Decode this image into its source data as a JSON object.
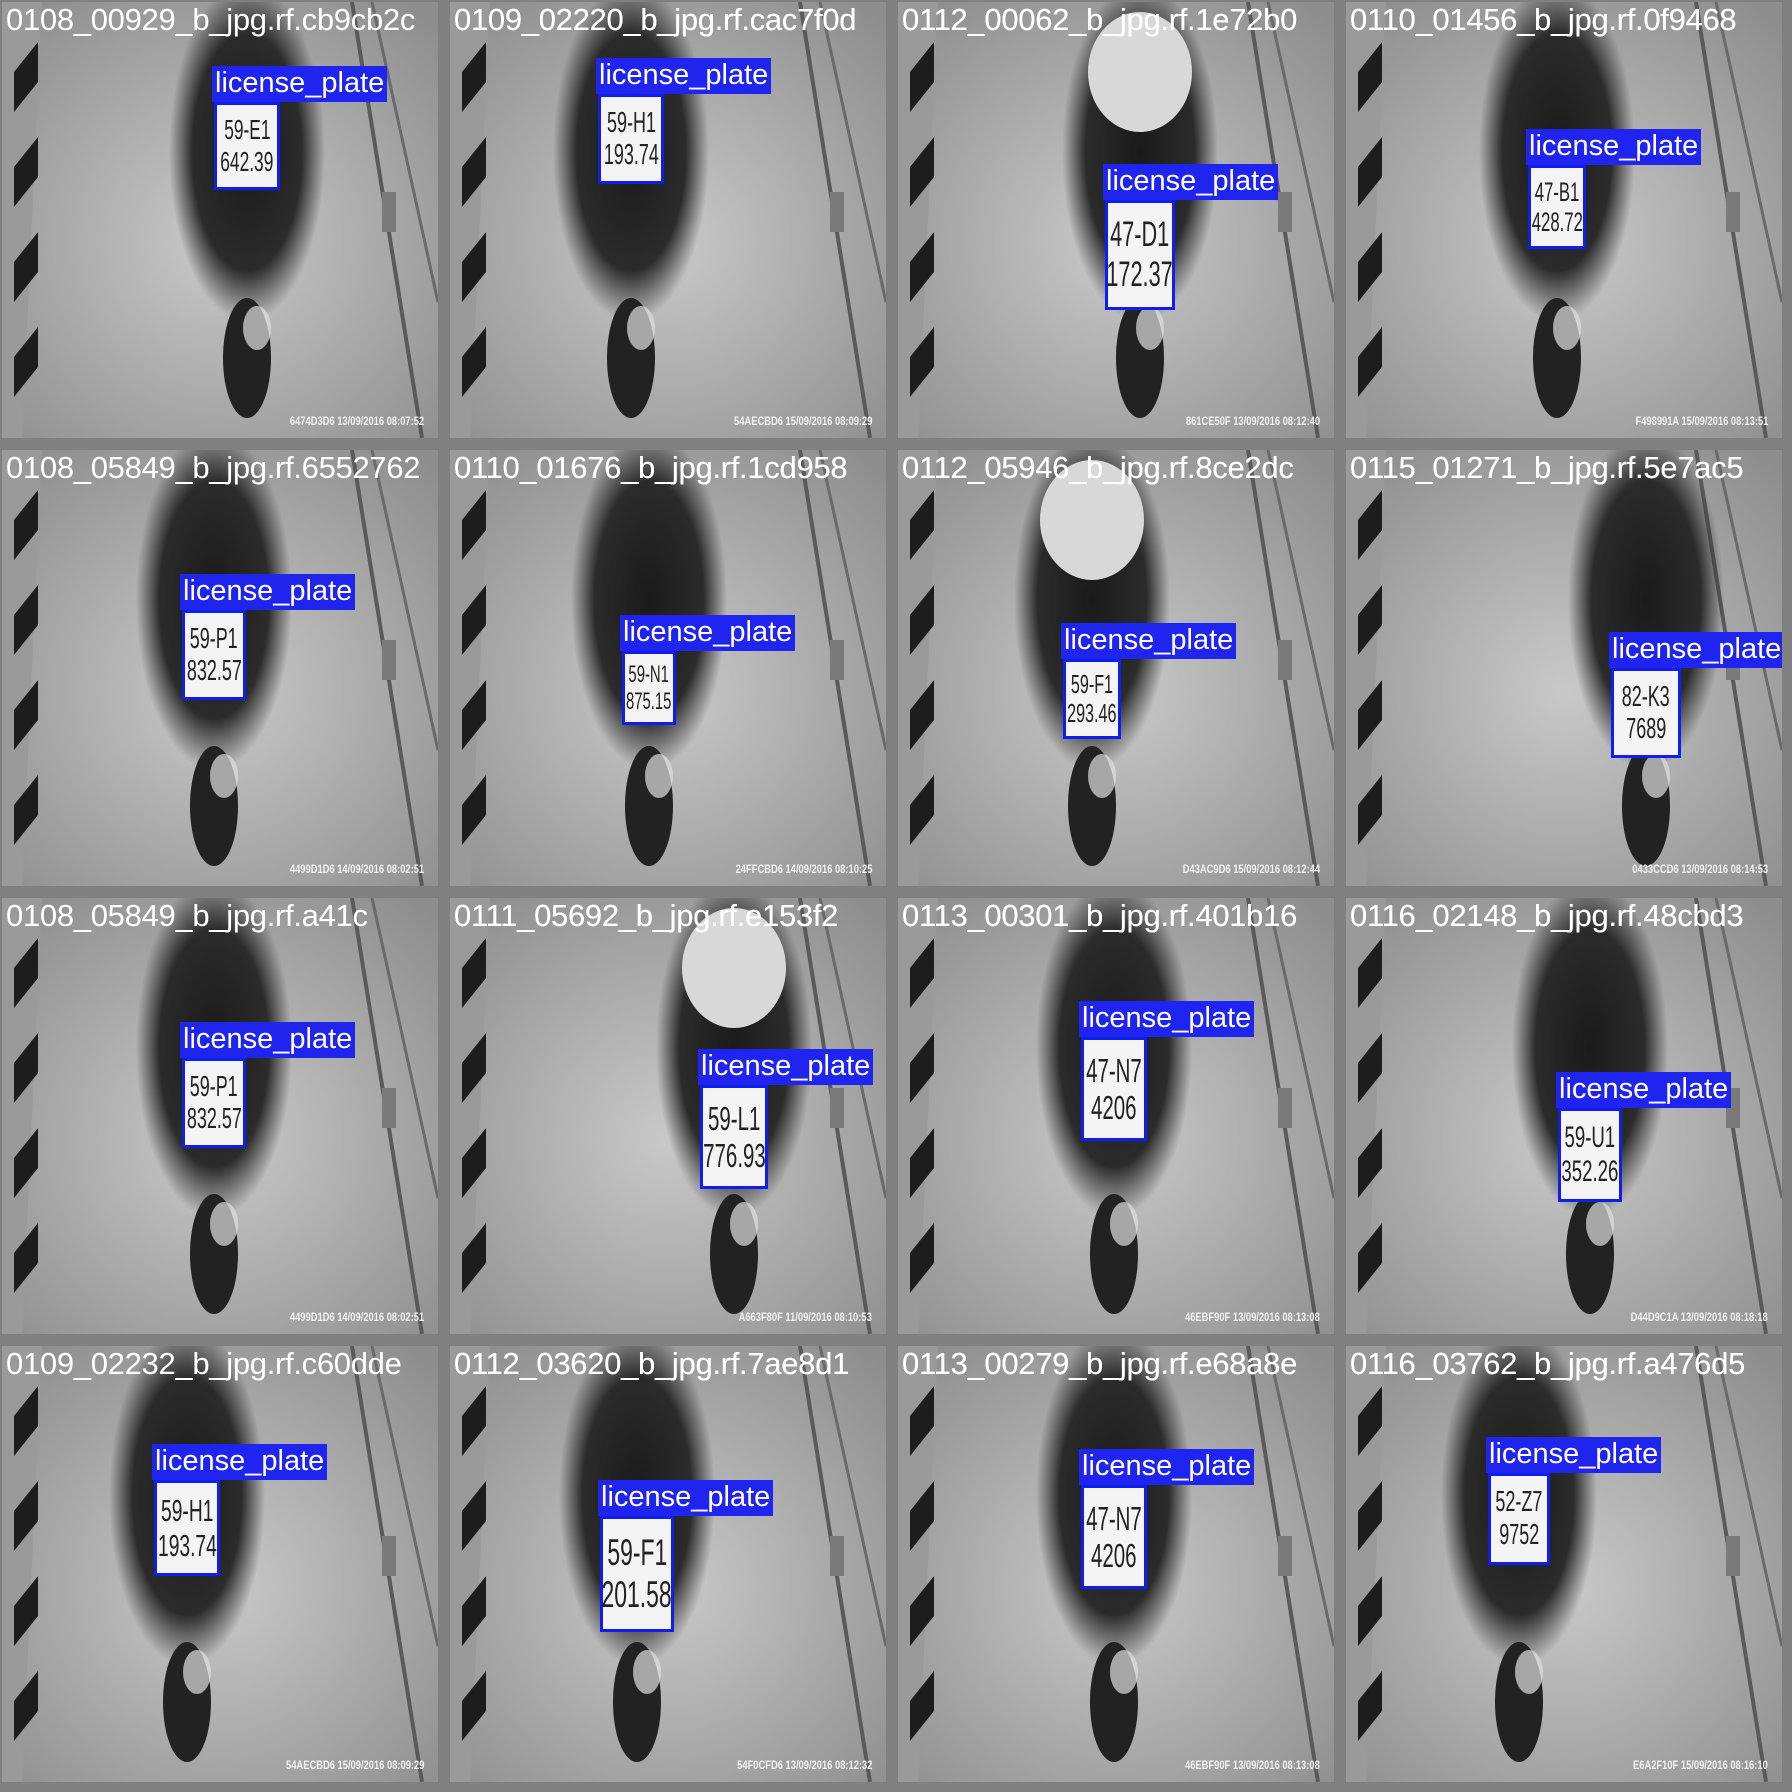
{
  "colors": {
    "box": "#0f1ef0",
    "label_bg": "#1f24ee",
    "label_text": "#ffffff",
    "caption_text": "#ffffff",
    "grid_bg": "#808080"
  },
  "tiles": [
    {
      "caption": "0108_00929_b_jpg.rf.cb9cb2c",
      "overlay_caption": "0109_02220_b_jpg.rf.cac7f0d",
      "label": "license_plate",
      "plate": [
        "59-E1",
        "642.39"
      ],
      "stamp": "6474D3D6 13/09/2016 08:07:52"
    },
    {
      "caption": "0109_02220_b_jpg.rf.cac7f0d",
      "overlay_caption": "0112_00062_b_jpg.rf.1e72b0",
      "label": "license_plate",
      "plate": [
        "59-H1",
        "193.74"
      ],
      "stamp": "54AECBD6 15/09/2016 08:09:29"
    },
    {
      "caption": "0112_00062_b_jpg.rf.1e72b0",
      "overlay_caption": "0110_01456_b_jpg.rf.0f9468",
      "label": "license_plate",
      "plate": [
        "47-D1",
        "172.37"
      ],
      "stamp": "861CE50F 13/09/2016 08:12:40"
    },
    {
      "caption": "0110_01456_b_jpg.rf.0f9468",
      "overlay_caption": "",
      "label": "license_plate",
      "plate": [
        "47-B1",
        "428.72"
      ],
      "stamp": "F498991A 15/09/2016 08:13:51"
    },
    {
      "caption": "0108_05849_b_jpg.rf.6552762",
      "overlay_caption": "0110_01676_b_jpg.rf.1cd958",
      "label": "license_plate",
      "plate": [
        "59-P1",
        "832.57"
      ],
      "stamp": "4499D1D6 14/09/2016 08:02:51"
    },
    {
      "caption": "0110_01676_b_jpg.rf.1cd958",
      "overlay_caption": "0112_05946_b_jpg.rf.8ce2dc",
      "label": "license_plate",
      "plate": [
        "59-N1",
        "875.15"
      ],
      "stamp": "24FFCBD6 14/09/2016 08:10:25"
    },
    {
      "caption": "0112_05946_b_jpg.rf.8ce2dc",
      "overlay_caption": "0115_01271_b_jpg.rf.5e7ac5",
      "label": "license_plate",
      "plate": [
        "59-F1",
        "293.46"
      ],
      "stamp": "D43AC9D6 15/09/2016 08:12:44"
    },
    {
      "caption": "0115_01271_b_jpg.rf.5e7ac5",
      "overlay_caption": "",
      "label": "license_plate",
      "plate": [
        "82-K3",
        "7689"
      ],
      "stamp": "0433CCD6 13/09/2016 08:14:53"
    },
    {
      "caption": "0108_05849_b_jpg.rf.a41c",
      "overlay_caption": "0111_05692_b_jpg.rf.e153f2",
      "label": "license_plate",
      "plate": [
        "59-P1",
        "832.57"
      ],
      "stamp": "4499D1D6 14/09/2016 08:02:51"
    },
    {
      "caption": "0111_05692_b_jpg.rf.e153f2",
      "overlay_caption": "0113_00301_b_jpg.rf.401b16",
      "label": "license_plate",
      "plate": [
        "59-L1",
        "776.93"
      ],
      "stamp": "A663F80F 11/09/2016 08:10:53"
    },
    {
      "caption": "0113_00301_b_jpg.rf.401b16",
      "overlay_caption": "0116_02148_b_jpg.rf.48cbd3",
      "label": "license_plate",
      "plate": [
        "47-N7",
        "4206"
      ],
      "stamp": "46EBF90F 13/09/2016 08:13:08"
    },
    {
      "caption": "0116_02148_b_jpg.rf.48cbd3",
      "overlay_caption": "",
      "label": "license_plate",
      "plate": [
        "59-U1",
        "352.26"
      ],
      "stamp": "D44D9C1A 13/09/2016 08:18:18"
    },
    {
      "caption": "0109_02232_b_jpg.rf.c60dde",
      "overlay_caption": "0112_03620_b_jpg.rf.7ae8d1",
      "label": "license_plate",
      "plate": [
        "59-H1",
        "193.74"
      ],
      "stamp": "54AECBD6 15/09/2016 08:09:29"
    },
    {
      "caption": "0112_03620_b_jpg.rf.7ae8d1",
      "overlay_caption": "0113_00279_b_jpg.rf.e68a8e",
      "label": "license_plate",
      "plate": [
        "59-F1",
        "201.58"
      ],
      "stamp": "54F0CFD6 13/09/2016 08:12:32"
    },
    {
      "caption": "0113_00279_b_jpg.rf.e68a8e",
      "overlay_caption": "0116_03762_b_jpg.rf.a476d5",
      "label": "license_plate",
      "plate": [
        "47-N7",
        "4206"
      ],
      "stamp": "46EBF90F 13/09/2016 08:13:08"
    },
    {
      "caption": "0116_03762_b_jpg.rf.a476d5",
      "overlay_caption": "",
      "label": "license_plate",
      "plate": [
        "52-Z7",
        "9752"
      ],
      "stamp": "E6A2F10F 15/09/2016 08:16:10"
    }
  ]
}
